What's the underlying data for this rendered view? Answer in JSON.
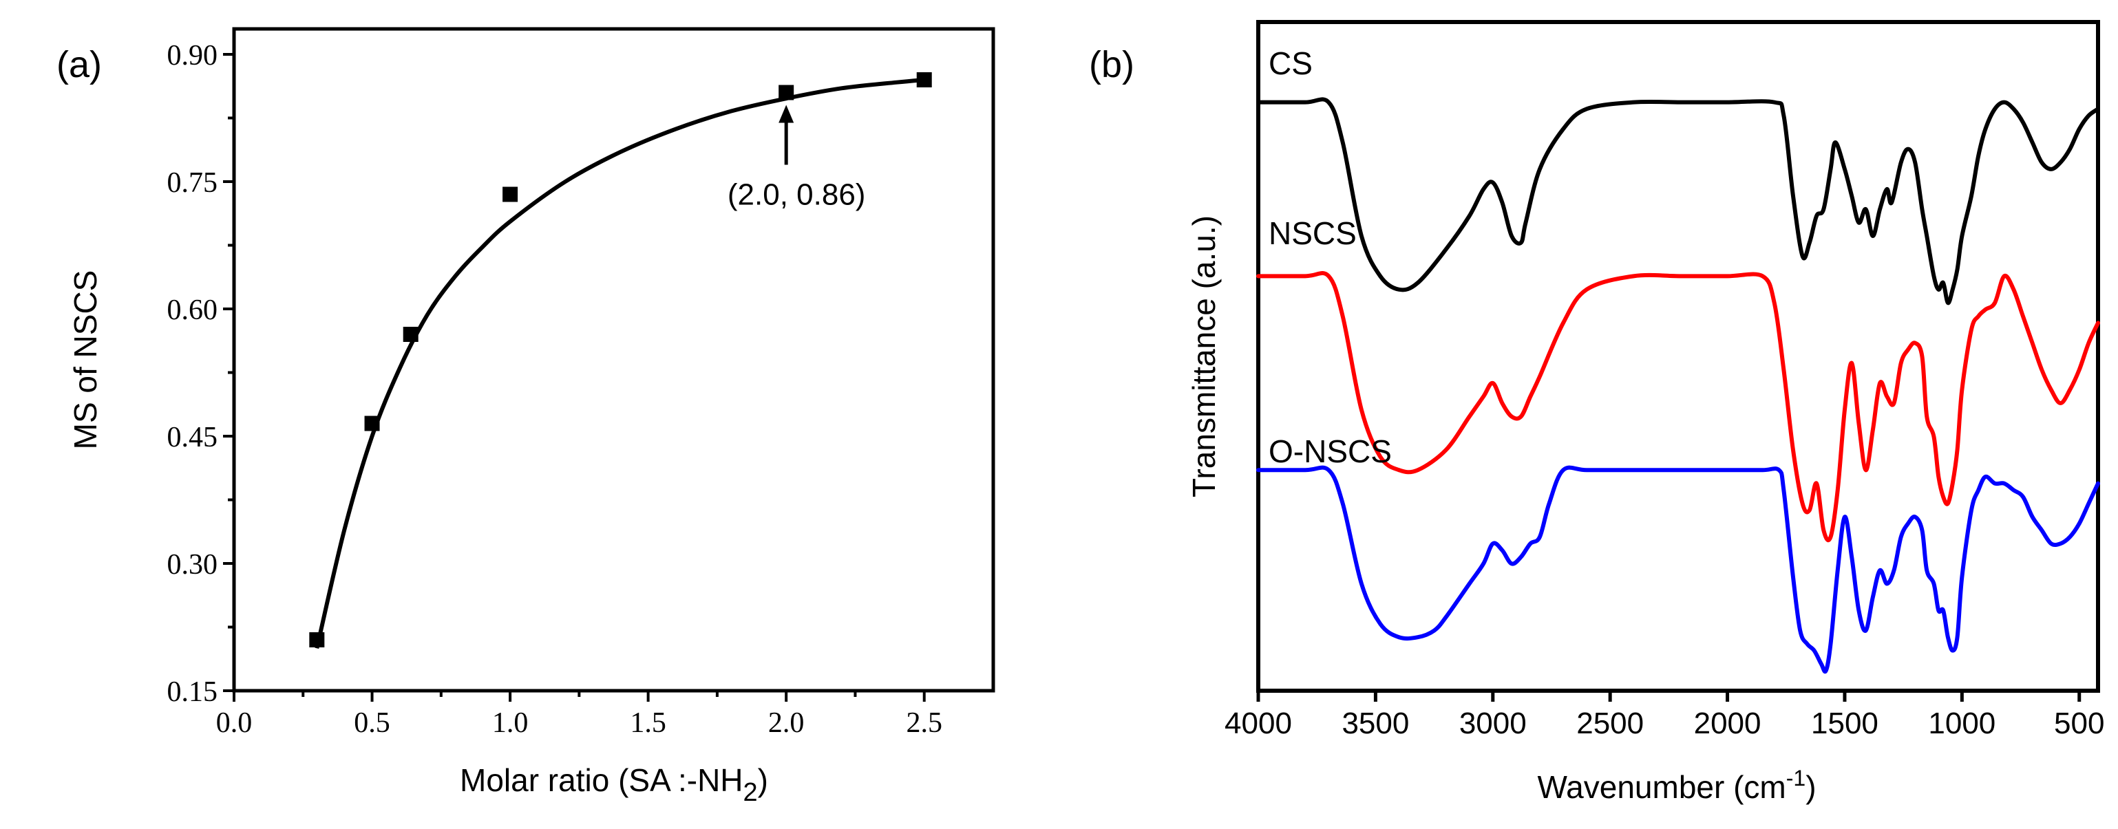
{
  "chart_data": [
    {
      "type": "scatter",
      "panel_label": "(a)",
      "xlabel_main": "Molar ratio (SA :-NH",
      "xlabel_sub": "2",
      "xlabel_close": ")",
      "ylabel": "MS of NSCS",
      "xlim": [
        0,
        2.75
      ],
      "ylim": [
        0.15,
        0.93
      ],
      "xticks": [
        "0.0",
        "0.5",
        "1.0",
        "1.5",
        "2.0",
        "2.5"
      ],
      "yticks": [
        "0.15",
        "0.30",
        "0.45",
        "0.60",
        "0.75",
        "0.90"
      ],
      "points": {
        "x": [
          0.3,
          0.5,
          0.64,
          1.0,
          2.0,
          2.5
        ],
        "y": [
          0.21,
          0.465,
          0.57,
          0.735,
          0.855,
          0.87
        ]
      },
      "fit_curve": {
        "x": [
          0.3,
          0.4,
          0.5,
          0.6,
          0.7,
          0.8,
          0.9,
          1.0,
          1.2,
          1.4,
          1.6,
          1.8,
          2.0,
          2.2,
          2.4,
          2.5
        ],
        "y": [
          0.2,
          0.34,
          0.45,
          0.53,
          0.593,
          0.638,
          0.673,
          0.703,
          0.75,
          0.785,
          0.812,
          0.833,
          0.848,
          0.86,
          0.867,
          0.87
        ]
      },
      "annotation": {
        "text": "(2.0, 0.86)",
        "x": 2.0,
        "y": 0.855
      }
    },
    {
      "type": "line",
      "panel_label": "(b)",
      "xlabel_main": "Wavenumber (cm",
      "xlabel_sup": "-1",
      "xlabel_close": ")",
      "ylabel": "Transmittance (a.u.)",
      "xlim": [
        4000,
        420
      ],
      "ylim": [
        0,
        100
      ],
      "xticks": [
        "4000",
        "3500",
        "3000",
        "2500",
        "2000",
        "1500",
        "1000",
        "500"
      ],
      "xtick_values": [
        4000,
        3500,
        3000,
        2500,
        2000,
        1500,
        1000,
        500
      ],
      "series": [
        {
          "name": "CS",
          "color": "#000000",
          "x": [
            4000,
            3800,
            3700,
            3640,
            3560,
            3480,
            3400,
            3320,
            3200,
            3100,
            3040,
            3000,
            2960,
            2920,
            2880,
            2860,
            2800,
            2700,
            2600,
            2400,
            2200,
            2000,
            1800,
            1760,
            1720,
            1680,
            1650,
            1620,
            1590,
            1560,
            1540,
            1500,
            1470,
            1440,
            1410,
            1380,
            1350,
            1320,
            1300,
            1260,
            1230,
            1200,
            1170,
            1150,
            1120,
            1100,
            1080,
            1060,
            1040,
            1020,
            1000,
            960,
            930,
            900,
            860,
            820,
            780,
            740,
            700,
            660,
            620,
            580,
            540,
            500,
            460,
            420
          ],
          "y": [
            88,
            88,
            88,
            82,
            68,
            62,
            60,
            61,
            66,
            71,
            75,
            76,
            73,
            68,
            67,
            70,
            78,
            84,
            87,
            88,
            88,
            88,
            88,
            86,
            74,
            65,
            67,
            71,
            72,
            78,
            82,
            78,
            74,
            70,
            72,
            68,
            72,
            75,
            73,
            79,
            81,
            79,
            72,
            68,
            62,
            60,
            61,
            58,
            60,
            63,
            68,
            74,
            80,
            84,
            87,
            88,
            87,
            85,
            82,
            79,
            78,
            79,
            81,
            84,
            86,
            87
          ]
        },
        {
          "name": "NSCS",
          "color": "#ff0000",
          "x": [
            4000,
            3800,
            3700,
            3640,
            3560,
            3480,
            3400,
            3320,
            3200,
            3100,
            3040,
            3000,
            2960,
            2920,
            2880,
            2840,
            2800,
            2700,
            2600,
            2400,
            2200,
            2000,
            1850,
            1800,
            1760,
            1720,
            1680,
            1650,
            1620,
            1590,
            1560,
            1530,
            1500,
            1470,
            1440,
            1410,
            1380,
            1350,
            1320,
            1290,
            1260,
            1230,
            1200,
            1170,
            1150,
            1120,
            1100,
            1080,
            1060,
            1040,
            1020,
            1000,
            960,
            930,
            900,
            860,
            820,
            780,
            740,
            700,
            660,
            620,
            580,
            540,
            500,
            460,
            420
          ],
          "y": [
            62,
            62,
            62,
            56,
            42,
            35,
            33,
            33,
            36,
            41,
            44,
            46,
            43,
            41,
            41,
            44,
            47,
            55,
            60,
            62,
            62,
            62,
            62,
            58,
            48,
            36,
            28,
            27,
            31,
            24,
            23,
            30,
            42,
            49,
            40,
            33,
            39,
            46,
            44,
            43,
            49,
            51,
            52,
            50,
            41,
            38,
            32,
            29,
            28,
            31,
            36,
            45,
            54,
            56,
            57,
            58,
            62,
            60,
            56,
            52,
            48,
            45,
            43,
            45,
            48,
            52,
            55
          ]
        },
        {
          "name": "O-NSCS",
          "color": "#0000ff",
          "x": [
            4000,
            3800,
            3700,
            3640,
            3560,
            3480,
            3400,
            3320,
            3250,
            3200,
            3100,
            3040,
            3000,
            2960,
            2920,
            2880,
            2840,
            2800,
            2760,
            2700,
            2600,
            2400,
            2200,
            2000,
            1850,
            1780,
            1760,
            1720,
            1690,
            1660,
            1630,
            1600,
            1580,
            1560,
            1530,
            1500,
            1470,
            1440,
            1410,
            1380,
            1350,
            1320,
            1290,
            1260,
            1230,
            1200,
            1170,
            1150,
            1120,
            1100,
            1080,
            1060,
            1040,
            1020,
            1000,
            960,
            930,
            900,
            860,
            820,
            780,
            740,
            700,
            660,
            620,
            580,
            540,
            500,
            460,
            420
          ],
          "y": [
            33,
            33,
            33,
            28,
            16,
            10,
            8,
            8,
            9,
            11,
            16,
            19,
            22,
            21,
            19,
            20,
            22,
            23,
            28,
            33,
            33,
            33,
            33,
            33,
            33,
            33,
            30,
            17,
            9,
            7,
            6,
            4,
            3,
            7,
            18,
            26,
            20,
            12,
            9,
            14,
            18,
            16,
            18,
            23,
            25,
            26,
            24,
            18,
            16,
            12,
            12,
            8,
            6,
            8,
            17,
            27,
            30,
            32,
            31,
            31,
            30,
            29,
            26,
            24,
            22,
            22,
            23,
            25,
            28,
            31
          ]
        }
      ],
      "curve_labels": [
        "CS",
        "NSCS",
        "O-NSCS"
      ]
    }
  ]
}
